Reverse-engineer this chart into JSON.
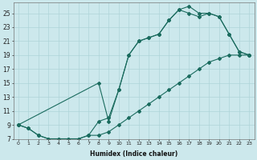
{
  "xlabel": "Humidex (Indice chaleur)",
  "bg_color": "#cce8ec",
  "grid_color": "#aed4d8",
  "line_color": "#1a6b5e",
  "xlim": [
    -0.5,
    23.5
  ],
  "ylim": [
    7,
    26.5
  ],
  "xticks": [
    0,
    1,
    2,
    3,
    4,
    5,
    6,
    7,
    8,
    9,
    10,
    11,
    12,
    13,
    14,
    15,
    16,
    17,
    18,
    19,
    20,
    21,
    22,
    23
  ],
  "yticks": [
    7,
    9,
    11,
    13,
    15,
    17,
    19,
    21,
    23,
    25
  ],
  "line1_x": [
    0,
    1,
    2,
    3,
    4,
    5,
    6,
    7,
    8,
    9,
    10,
    11,
    12,
    13,
    14,
    15,
    16,
    17,
    18,
    19,
    20,
    21,
    22,
    23
  ],
  "line1_y": [
    9,
    8.5,
    7.5,
    7,
    7,
    7,
    7,
    7.5,
    9.5,
    10,
    14,
    19,
    21,
    21.5,
    22,
    24,
    25.5,
    26,
    25,
    25,
    24.5,
    22,
    19.5,
    19
  ],
  "line2_x": [
    0,
    1,
    2,
    3,
    4,
    5,
    6,
    7,
    8,
    9,
    10,
    11,
    12,
    13,
    14,
    15,
    16,
    17,
    18,
    19,
    20,
    21,
    22,
    23
  ],
  "line2_y": [
    9,
    8.5,
    7.5,
    7,
    7,
    7,
    7,
    7.5,
    7.5,
    8,
    9,
    10,
    11,
    12,
    13,
    14,
    15,
    16,
    17,
    18,
    18.5,
    19,
    19,
    19
  ],
  "line3_x": [
    0,
    8,
    9,
    10,
    11,
    12,
    13,
    14,
    15,
    16,
    17,
    18,
    19,
    20,
    21,
    22,
    23
  ],
  "line3_y": [
    9,
    15,
    9.5,
    14,
    19,
    21,
    21.5,
    22,
    24,
    25.5,
    25,
    24.5,
    25,
    24.5,
    22,
    19.5,
    19
  ]
}
